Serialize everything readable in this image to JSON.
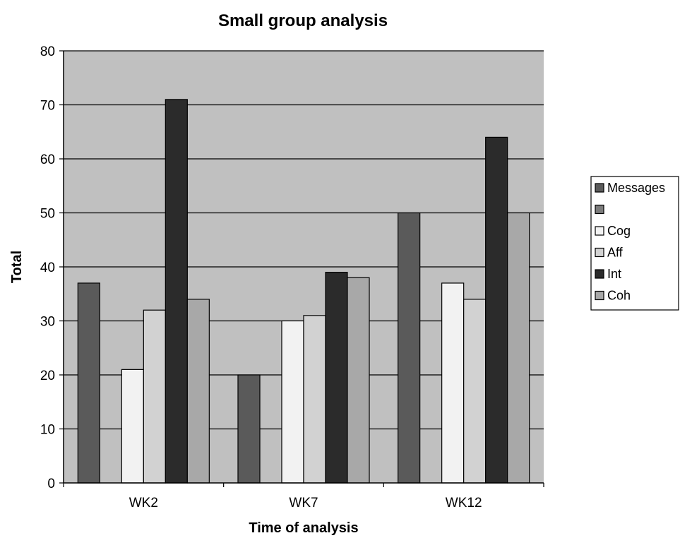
{
  "chart_data": {
    "type": "bar",
    "title": "Small group analysis",
    "xlabel": "Time of analysis",
    "ylabel": "Total",
    "categories": [
      "WK2",
      "WK7",
      "WK12"
    ],
    "ylim": [
      0,
      80
    ],
    "yticks": [
      0,
      10,
      20,
      30,
      40,
      50,
      60,
      70,
      80
    ],
    "grid": true,
    "legend": "right",
    "plot_background": "#c0c0c0",
    "series": [
      {
        "name": "Messages",
        "color": "#5a5a5a",
        "values": [
          37,
          20,
          50
        ]
      },
      {
        "name": "",
        "color": "#7c7c7c",
        "values": [
          null,
          null,
          null
        ]
      },
      {
        "name": "Cog",
        "color": "#f2f2f2",
        "values": [
          21,
          30,
          37
        ]
      },
      {
        "name": "Aff",
        "color": "#d2d2d2",
        "values": [
          32,
          31,
          34
        ]
      },
      {
        "name": "Int",
        "color": "#2b2b2b",
        "values": [
          71,
          39,
          64
        ]
      },
      {
        "name": "Coh",
        "color": "#a8a8a8",
        "values": [
          34,
          38,
          50
        ]
      }
    ]
  }
}
